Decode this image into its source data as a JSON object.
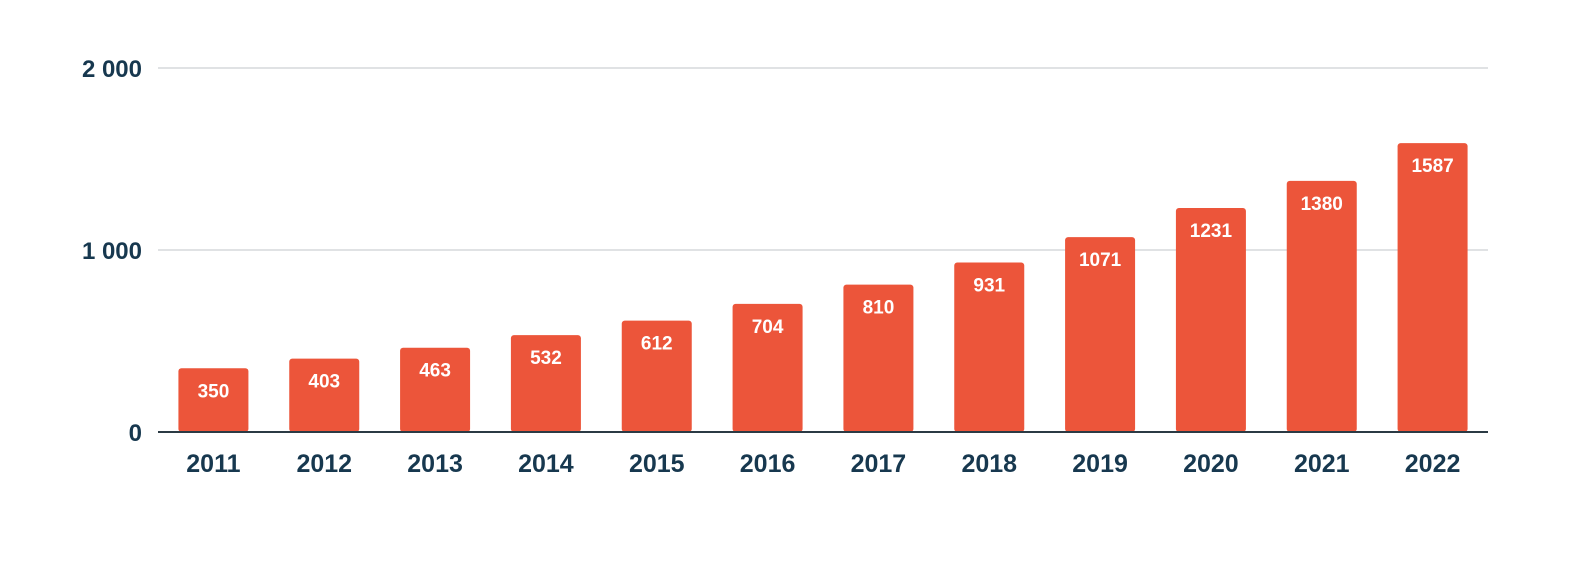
{
  "chart_data": {
    "type": "bar",
    "categories": [
      "2011",
      "2012",
      "2013",
      "2014",
      "2015",
      "2016",
      "2017",
      "2018",
      "2019",
      "2020",
      "2021",
      "2022"
    ],
    "values": [
      350,
      403,
      463,
      532,
      612,
      704,
      810,
      931,
      1071,
      1231,
      1380,
      1587
    ],
    "data_labels": [
      "350",
      "403",
      "463",
      "532",
      "612",
      "704",
      "810",
      "931",
      "1071",
      "1231",
      "1380",
      "1587"
    ],
    "y_ticks": [
      0,
      1000,
      2000
    ],
    "y_tick_labels": [
      "0",
      "1 000",
      "2 000"
    ],
    "ylim": [
      0,
      2000
    ],
    "grid": true,
    "legend": "none",
    "title": "",
    "xlabel": "",
    "ylabel": "",
    "bar_color": "#ec553a",
    "label_color": "#ffffff",
    "axis_text_color": "#17384f",
    "grid_color": "#d6d9dc"
  }
}
